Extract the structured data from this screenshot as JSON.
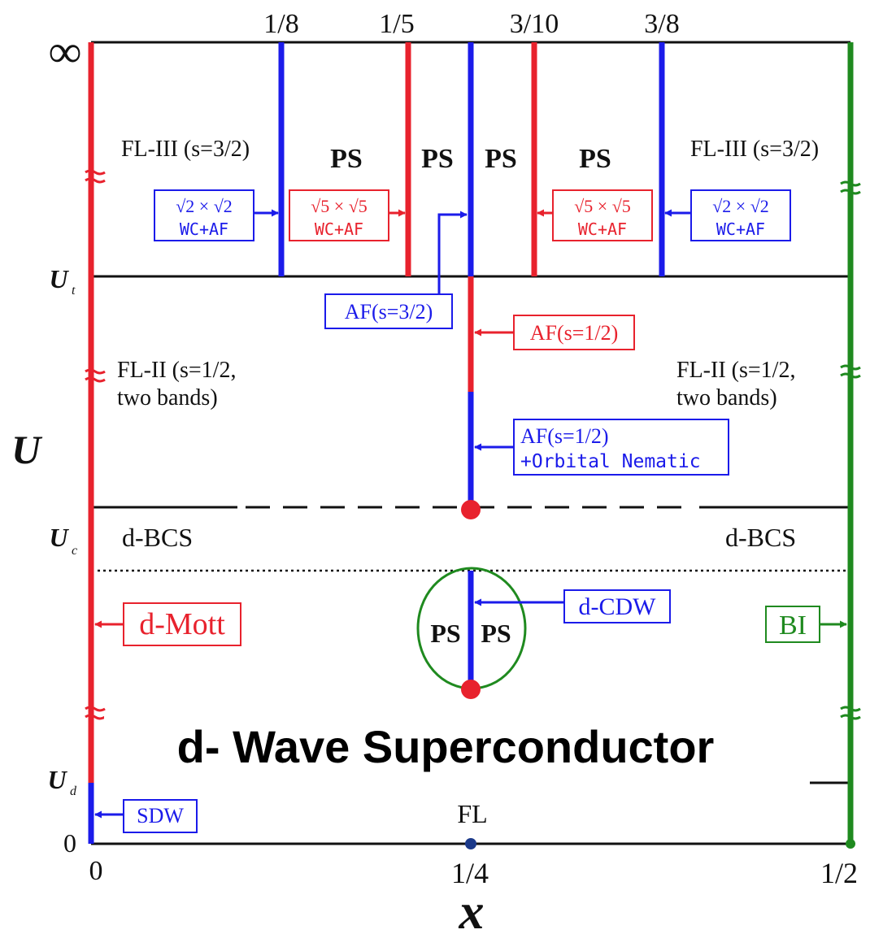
{
  "colors": {
    "red": "#e8222d",
    "blue": "#1b1bea",
    "green": "#1f8a1f",
    "black": "#111111",
    "navy_dot": "#1c3a8a"
  },
  "x_axis": {
    "label": "x",
    "ticks_bottom": [
      "0",
      "1/4",
      "1/2"
    ],
    "ticks_top": [
      "1/8",
      "1/5",
      "3/10",
      "3/8"
    ]
  },
  "y_axis": {
    "label": "U",
    "ticks": [
      "∞",
      "U",
      "t",
      "U",
      "c",
      "U",
      "d",
      "0"
    ]
  },
  "regions": {
    "fl3_left": "FL-III (s=3/2)",
    "fl3_right": "FL-III (s=3/2)",
    "ps_labels": [
      "PS",
      "PS",
      "PS",
      "PS"
    ],
    "fl2_left_line1": "FL-II (s=1/2,",
    "fl2_left_line2": "two bands)",
    "fl2_right_line1": "FL-II (s=1/2,",
    "fl2_right_line2": "two bands)",
    "dbcs_left": "d-BCS",
    "dbcs_right": "d-BCS",
    "ps_left": "PS",
    "ps_right": "PS",
    "fl_point": "FL",
    "overlay_title": "d- Wave Superconductor"
  },
  "boxes": {
    "sqrt2_left_top": "√2 × √2",
    "sqrt2_left_bot": "WC+AF",
    "sqrt5_left_top": "√5 × √5",
    "sqrt5_left_bot": "WC+AF",
    "sqrt5_right_top": "√5 × √5",
    "sqrt5_right_bot": "WC+AF",
    "sqrt2_right_top": "√2 × √2",
    "sqrt2_right_bot": "WC+AF",
    "af_s32": "AF(s=3/2)",
    "af_s12": "AF(s=1/2)",
    "af_nem_line1": "AF(s=1/2)",
    "af_nem_line2": "+Orbital Nematic",
    "dcdw": "d-CDW",
    "dmott": "d-Mott",
    "bi": "BI",
    "sdw": "SDW"
  }
}
